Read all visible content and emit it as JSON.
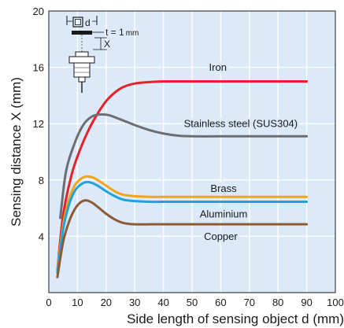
{
  "chart_data": {
    "type": "line",
    "xlabel": "Side length of sensing object d (mm)",
    "ylabel": "Sensing distance X (mm)",
    "xlim": [
      0,
      100
    ],
    "ylim": [
      0,
      20
    ],
    "x_ticks": [
      0,
      10,
      20,
      30,
      40,
      50,
      60,
      70,
      80,
      90,
      100
    ],
    "y_ticks": [
      4,
      8,
      12,
      16,
      20
    ],
    "grid": true,
    "background": "#dbe9f8",
    "inset": {
      "d_label": "d",
      "x_label": "X",
      "t_label": "t = 1",
      "t_unit": "mm"
    },
    "series": [
      {
        "name": "Iron",
        "color": "#e8202a",
        "x": [
          3,
          5,
          8,
          11,
          14,
          17,
          20,
          23,
          26,
          30,
          35,
          40,
          50,
          60,
          70,
          80,
          90
        ],
        "y": [
          1.6,
          5.5,
          8.4,
          10.2,
          11.6,
          12.7,
          13.6,
          14.2,
          14.6,
          14.85,
          14.95,
          15.0,
          15.0,
          15.0,
          15.0,
          15.0,
          15.0
        ]
      },
      {
        "name": "Stainless steel (SUS304)",
        "color": "#6d6e71",
        "x": [
          4,
          6,
          9,
          12,
          15,
          18,
          21,
          25,
          30,
          35,
          40,
          45,
          50,
          60,
          70,
          80,
          90
        ],
        "y": [
          5.3,
          8.6,
          10.6,
          11.9,
          12.5,
          12.65,
          12.6,
          12.3,
          11.9,
          11.55,
          11.3,
          11.15,
          11.1,
          11.1,
          11.1,
          11.1,
          11.1
        ]
      },
      {
        "name": "Brass",
        "color": "#f2a516",
        "x": [
          3,
          5,
          7,
          9,
          11,
          13,
          15,
          17,
          20,
          23,
          26,
          30,
          35,
          40,
          50,
          60,
          70,
          80,
          90
        ],
        "y": [
          1.6,
          4.8,
          6.6,
          7.6,
          8.05,
          8.25,
          8.2,
          8.0,
          7.6,
          7.2,
          6.95,
          6.85,
          6.8,
          6.8,
          6.8,
          6.8,
          6.8,
          6.8,
          6.8
        ]
      },
      {
        "name": "Aluminium",
        "color": "#1fa3dc",
        "x": [
          3,
          5,
          7,
          9,
          11,
          13,
          15,
          17,
          20,
          23,
          26,
          30,
          35,
          40,
          50,
          60,
          70,
          80,
          90
        ],
        "y": [
          1.4,
          4.5,
          6.2,
          7.2,
          7.65,
          7.85,
          7.8,
          7.6,
          7.2,
          6.85,
          6.6,
          6.5,
          6.45,
          6.45,
          6.45,
          6.45,
          6.45,
          6.45,
          6.45
        ]
      },
      {
        "name": "Copper",
        "color": "#8c5b36",
        "x": [
          3,
          5,
          7,
          9,
          11,
          13,
          15,
          17,
          20,
          23,
          26,
          30,
          35,
          40,
          50,
          60,
          70,
          80,
          90
        ],
        "y": [
          1.1,
          3.6,
          5.0,
          5.9,
          6.4,
          6.55,
          6.4,
          6.1,
          5.6,
          5.2,
          4.95,
          4.85,
          4.85,
          4.85,
          4.85,
          4.85,
          4.85,
          4.85,
          4.85
        ]
      }
    ],
    "labels": [
      {
        "series": "Iron",
        "text": "Iron",
        "x": 59,
        "y": 16.0
      },
      {
        "series": "Stainless steel (SUS304)",
        "text": "Stainless steel (SUS304)",
        "x": 67,
        "y": 12.0
      },
      {
        "series": "Brass",
        "text": "Brass",
        "x": 61,
        "y": 7.4
      },
      {
        "series": "Aluminium",
        "text": "Aluminium",
        "x": 61,
        "y": 5.6
      },
      {
        "series": "Copper",
        "text": "Copper",
        "x": 60,
        "y": 4.0
      }
    ]
  }
}
